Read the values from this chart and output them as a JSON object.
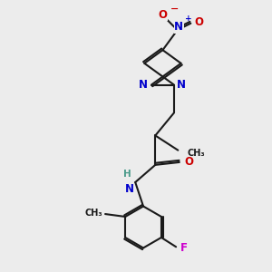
{
  "bg_color": "#ececec",
  "bond_color": "#1a1a1a",
  "bond_width": 1.5,
  "atom_colors": {
    "N": "#0000cc",
    "O": "#cc0000",
    "F": "#cc00cc",
    "H": "#4a9a8a",
    "C": "#1a1a1a"
  },
  "font_size_atom": 8.5,
  "font_size_small": 6.5
}
